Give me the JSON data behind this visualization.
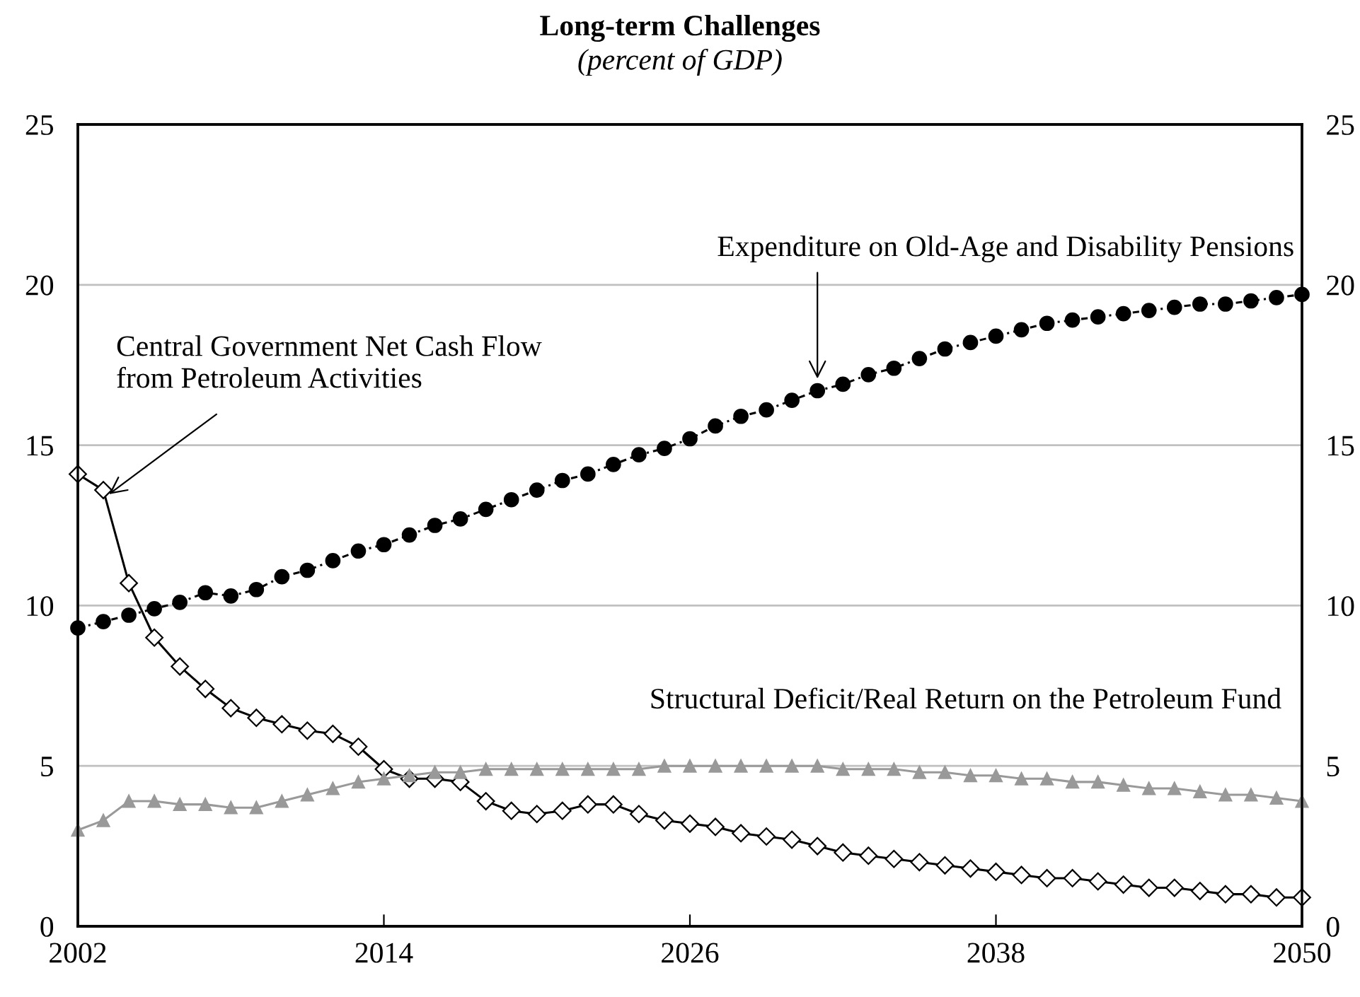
{
  "chart_data": {
    "type": "line",
    "title": "Long-term Challenges",
    "subtitle": "(percent of GDP)",
    "x": [
      2002,
      2003,
      2004,
      2005,
      2006,
      2007,
      2008,
      2009,
      2010,
      2011,
      2012,
      2013,
      2014,
      2015,
      2016,
      2017,
      2018,
      2019,
      2020,
      2021,
      2022,
      2023,
      2024,
      2025,
      2026,
      2027,
      2028,
      2029,
      2030,
      2031,
      2032,
      2033,
      2034,
      2035,
      2036,
      2037,
      2038,
      2039,
      2040,
      2041,
      2042,
      2043,
      2044,
      2045,
      2046,
      2047,
      2048,
      2049,
      2050
    ],
    "series": [
      {
        "name": "Expenditure on Old-Age and Disability Pensions",
        "color": "#000000",
        "marker": "circle",
        "line_style": "dashed",
        "values": [
          9.3,
          9.5,
          9.7,
          9.9,
          10.1,
          10.4,
          10.3,
          10.5,
          10.9,
          11.1,
          11.4,
          11.7,
          11.9,
          12.2,
          12.5,
          12.7,
          13.0,
          13.3,
          13.6,
          13.9,
          14.1,
          14.4,
          14.7,
          14.9,
          15.2,
          15.6,
          15.9,
          16.1,
          16.4,
          16.7,
          16.9,
          17.2,
          17.4,
          17.7,
          18.0,
          18.2,
          18.4,
          18.6,
          18.8,
          18.9,
          19.0,
          19.1,
          19.2,
          19.3,
          19.4,
          19.4,
          19.5,
          19.6,
          19.7
        ]
      },
      {
        "name": "Central Government Net Cash Flow\nfrom Petroleum Activities",
        "color": "#000000",
        "marker": "diamond",
        "line_style": "solid",
        "values": [
          14.1,
          13.6,
          10.7,
          9.0,
          8.1,
          7.4,
          6.8,
          6.5,
          6.3,
          6.1,
          6.0,
          5.6,
          4.9,
          4.6,
          4.6,
          4.5,
          3.9,
          3.6,
          3.5,
          3.6,
          3.8,
          3.8,
          3.5,
          3.3,
          3.2,
          3.1,
          2.9,
          2.8,
          2.7,
          2.5,
          2.3,
          2.2,
          2.1,
          2.0,
          1.9,
          1.8,
          1.7,
          1.6,
          1.5,
          1.5,
          1.4,
          1.3,
          1.2,
          1.2,
          1.1,
          1.0,
          1.0,
          0.9,
          0.9
        ]
      },
      {
        "name": "Structural Deficit/Real Return on the Petroleum Fund",
        "color": "#999999",
        "marker": "triangle",
        "line_style": "solid",
        "values": [
          3.0,
          3.3,
          3.9,
          3.9,
          3.8,
          3.8,
          3.7,
          3.7,
          3.9,
          4.1,
          4.3,
          4.5,
          4.6,
          4.7,
          4.8,
          4.8,
          4.9,
          4.9,
          4.9,
          4.9,
          4.9,
          4.9,
          4.9,
          5.0,
          5.0,
          5.0,
          5.0,
          5.0,
          5.0,
          5.0,
          4.9,
          4.9,
          4.9,
          4.8,
          4.8,
          4.7,
          4.7,
          4.6,
          4.6,
          4.5,
          4.5,
          4.4,
          4.3,
          4.3,
          4.2,
          4.1,
          4.1,
          4.0,
          3.9
        ]
      }
    ],
    "xlim": [
      2002,
      2050
    ],
    "xticks": [
      2002,
      2014,
      2026,
      2038,
      2050
    ],
    "ylim": [
      0,
      25
    ],
    "yticks": [
      0,
      5,
      10,
      15,
      20,
      25
    ],
    "y2lim": [
      0,
      25
    ],
    "y2ticks": [
      0,
      5,
      10,
      15,
      20,
      25
    ],
    "grid": "y",
    "legend": false
  }
}
